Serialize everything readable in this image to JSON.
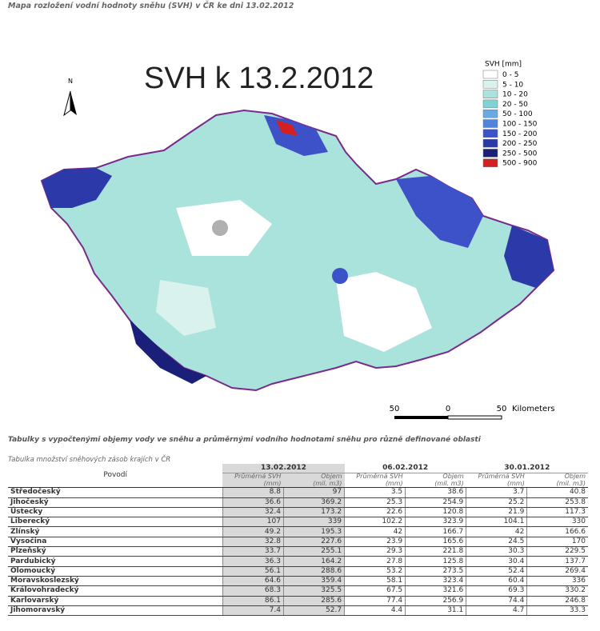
{
  "header": {
    "title": "Mapa rozložení vodní hodnoty sněhu (SVH) v ČR ke dni 13.02.2012"
  },
  "map": {
    "title": "SVH k 13.2.2012",
    "north": "N",
    "legend": {
      "title": "SVH [mm]",
      "items": [
        {
          "label": "0 - 5",
          "color": "#ffffff"
        },
        {
          "label": "5 - 10",
          "color": "#d9f2ee"
        },
        {
          "label": "10 - 20",
          "color": "#a9e3dc"
        },
        {
          "label": "20 - 50",
          "color": "#7fd3d6"
        },
        {
          "label": "50 - 100",
          "color": "#6aa9e6"
        },
        {
          "label": "100 - 150",
          "color": "#4f86dc"
        },
        {
          "label": "150 - 200",
          "color": "#3d52c8"
        },
        {
          "label": "200 - 250",
          "color": "#2b3aa8"
        },
        {
          "label": "250 - 500",
          "color": "#1a1f7a"
        },
        {
          "label": "500 - 900",
          "color": "#d42020"
        }
      ]
    },
    "scale": {
      "ticks": [
        "50",
        "0",
        "50"
      ],
      "unit": "Kilometers"
    }
  },
  "section": {
    "title": "Tabulky s vypočtenými objemy vody ve sněhu a průměrnými vodního hodnotami sněhu pro různě definované oblasti"
  },
  "table": {
    "caption": "Tabulka množství sněhových zásob krajích v ČR",
    "first_header": "Povodí",
    "dates": [
      "13.02.2012",
      "06.02.2012",
      "30.01.2012"
    ],
    "subheaders": [
      [
        "Průměrná SVH",
        "(mm)"
      ],
      [
        "Objem",
        "(mil. m3)"
      ]
    ],
    "rows": [
      [
        "Středočeský",
        8.8,
        97,
        3.5,
        38.6,
        3.7,
        40.8
      ],
      [
        "Jihočeský",
        36.6,
        369.2,
        25.3,
        254.9,
        25.2,
        253.8
      ],
      [
        "Ústecky",
        32.4,
        173.2,
        22.6,
        120.8,
        21.9,
        117.3
      ],
      [
        "Liberecký",
        107,
        339,
        102.2,
        323.9,
        104.1,
        330
      ],
      [
        "Zlínský",
        49.2,
        195.3,
        42,
        166.7,
        42,
        166.6
      ],
      [
        "Vysočina",
        32.8,
        227.6,
        23.9,
        165.6,
        24.5,
        170
      ],
      [
        "Plzeňský",
        33.7,
        255.1,
        29.3,
        221.8,
        30.3,
        229.5
      ],
      [
        "Pardubický",
        36.3,
        164.2,
        27.8,
        125.8,
        30.4,
        137.7
      ],
      [
        "Olomoucký",
        56.1,
        288.6,
        53.2,
        273.5,
        52.4,
        269.4
      ],
      [
        "Moravskoslezský",
        64.6,
        359.4,
        58.1,
        323.4,
        60.4,
        336
      ],
      [
        "Královohradecký",
        68.3,
        325.5,
        67.5,
        321.6,
        69.3,
        330.2
      ],
      [
        "Karlovarský",
        86.1,
        285.6,
        77.4,
        256.9,
        74.4,
        246.8
      ],
      [
        "Jihomoravský",
        7.4,
        52.7,
        4.4,
        31.1,
        4.7,
        33.3
      ]
    ]
  }
}
